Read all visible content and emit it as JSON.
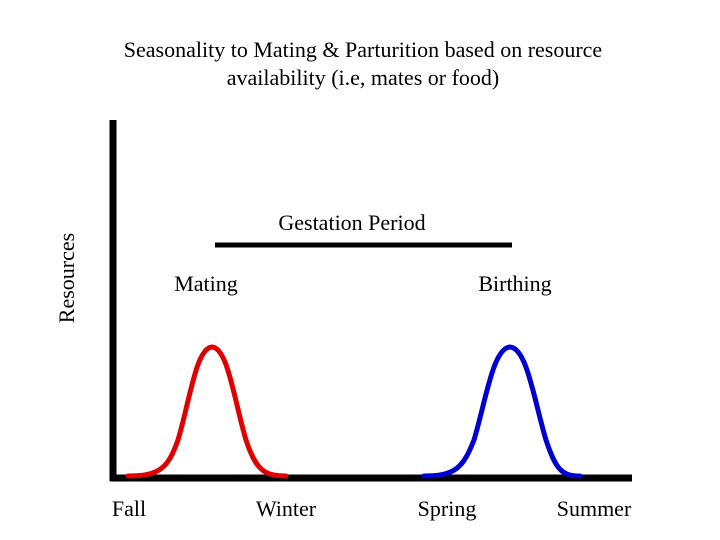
{
  "title": {
    "line1": "Seasonality to Mating & Parturition based on resource",
    "line2": "availability (i.e, mates or food)"
  },
  "axes": {
    "y_label": "Resources",
    "x_ticks": [
      "Fall",
      "Winter",
      "Spring",
      "Summer"
    ]
  },
  "gestation": {
    "label": "Gestation Period",
    "color": "#000000"
  },
  "peaks": [
    {
      "label": "Mating",
      "color": "#e00000"
    },
    {
      "label": "Birthing",
      "color": "#0000d0"
    }
  ]
}
